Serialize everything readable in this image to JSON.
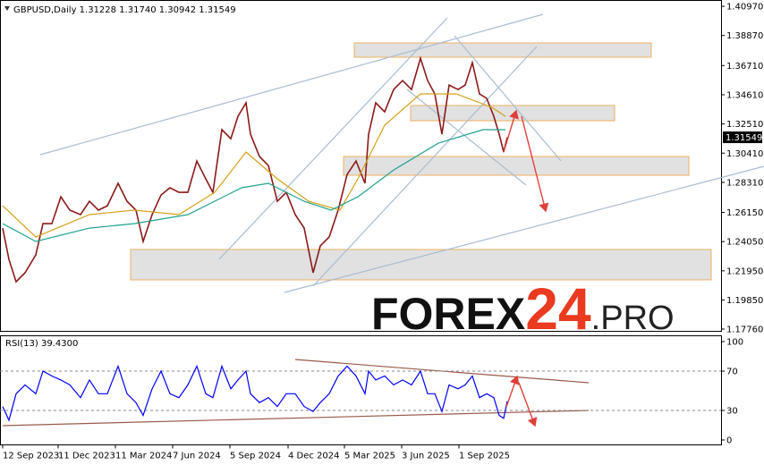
{
  "chart_data": [
    {
      "type": "line",
      "title": "GBPUSD,Daily  1.31228 1.31740 1.30942 1.31549",
      "watermark": {
        "main": "FOREX",
        "number": "24",
        "suffix": ".PRO"
      },
      "last_price": 1.31549,
      "xlim": [
        0,
        806
      ],
      "ylim": [
        1.1763,
        1.4136
      ],
      "yticks": [
        {
          "value": 1.4097,
          "label": "1.40970"
        },
        {
          "value": 1.3887,
          "label": "1.38870"
        },
        {
          "value": 1.3671,
          "label": "1.36710"
        },
        {
          "value": 1.3461,
          "label": "1.34610"
        },
        {
          "value": 1.3251,
          "label": "1.32510"
        },
        {
          "value": 1.3041,
          "label": "1.30410"
        },
        {
          "value": 1.2831,
          "label": "1.28310"
        },
        {
          "value": 1.2615,
          "label": "1.26150"
        },
        {
          "value": 1.2405,
          "label": "1.24050"
        },
        {
          "value": 1.2195,
          "label": "1.21950"
        },
        {
          "value": 1.1985,
          "label": "1.19850"
        },
        {
          "value": 1.1776,
          "label": "1.17760"
        }
      ],
      "x": [
        3,
        10,
        18,
        28,
        40,
        48,
        58,
        68,
        78,
        90,
        100,
        110,
        120,
        132,
        142,
        152,
        160,
        170,
        180,
        190,
        200,
        210,
        220,
        230,
        238,
        248,
        258,
        266,
        275,
        280,
        290,
        300,
        310,
        320,
        330,
        340,
        350,
        358,
        368,
        378,
        388,
        398,
        408,
        412,
        420,
        430,
        440,
        450,
        460,
        470,
        478,
        486,
        494,
        502,
        512,
        520,
        528,
        536,
        544,
        552,
        558,
        563,
        567
      ],
      "series": [
        {
          "color": "#8b1a1a",
          "values": [
            1.2502,
            1.2277,
            1.2116,
            1.2181,
            1.2309,
            1.2534,
            1.2534,
            1.2727,
            1.2631,
            1.2599,
            1.2695,
            1.2631,
            1.2663,
            1.2824,
            1.2695,
            1.2631,
            1.2406,
            1.2599,
            1.274,
            1.2792,
            1.2759,
            1.2759,
            1.2984,
            1.2856,
            1.2759,
            1.321,
            1.3145,
            1.3306,
            1.3403,
            1.3177,
            1.3017,
            1.2952,
            1.2695,
            1.2759,
            1.2599,
            1.2502,
            1.2181,
            1.2374,
            1.2438,
            1.2631,
            1.2888,
            1.2984,
            1.2824,
            1.3177,
            1.3403,
            1.3338,
            1.3499,
            1.3563,
            1.3499,
            1.3724,
            1.3563,
            1.3467,
            1.3177,
            1.3531,
            1.3499,
            1.3531,
            1.3692,
            1.3467,
            1.3435,
            1.3306,
            1.3177,
            1.3049,
            1.31549
          ]
        },
        {
          "color": "#d4a017",
          "x": [
            3,
            40,
            100,
            150,
            200,
            240,
            275,
            310,
            345,
            380,
            400,
            430,
            470,
            510,
            550,
            565
          ],
          "values": [
            1.2663,
            1.2438,
            1.2599,
            1.2631,
            1.2599,
            1.2759,
            1.3049,
            1.2856,
            1.2695,
            1.2631,
            1.2856,
            1.3242,
            1.3467,
            1.3467,
            1.337,
            1.3306
          ]
        },
        {
          "color": "#20a090",
          "x": [
            3,
            40,
            100,
            150,
            210,
            270,
            300,
            340,
            370,
            400,
            440,
            490,
            540,
            565
          ],
          "values": [
            1.2534,
            1.2406,
            1.2502,
            1.2534,
            1.2599,
            1.2792,
            1.2824,
            1.2695,
            1.2631,
            1.2727,
            1.292,
            1.3113,
            1.321,
            1.321
          ]
        }
      ]
    },
    {
      "type": "line",
      "title": "RSI(13) 39.4300",
      "xlim": [
        0,
        806
      ],
      "ylim": [
        -5,
        105
      ],
      "yticks": [
        0,
        30,
        70,
        100
      ],
      "levels": [
        30,
        70
      ],
      "xticks": [
        {
          "value": 3,
          "label": "12 Sep 2023"
        },
        {
          "value": 65,
          "label": "11 Dec 2023"
        },
        {
          "value": 129,
          "label": "11 Mar 2024"
        },
        {
          "value": 193,
          "label": "7 Jun 2024"
        },
        {
          "value": 257,
          "label": "5 Sep 2024"
        },
        {
          "value": 322,
          "label": "4 Dec 2024"
        },
        {
          "value": 385,
          "label": "5 Mar 2025"
        },
        {
          "value": 449,
          "label": "3 Jun 2025"
        },
        {
          "value": 513,
          "label": "1 Sep 2025"
        }
      ],
      "x": [
        3,
        10,
        18,
        28,
        40,
        48,
        58,
        68,
        78,
        90,
        100,
        110,
        120,
        132,
        142,
        152,
        160,
        170,
        180,
        190,
        200,
        210,
        220,
        230,
        238,
        248,
        258,
        266,
        275,
        280,
        290,
        300,
        310,
        320,
        330,
        340,
        350,
        358,
        368,
        378,
        388,
        398,
        408,
        412,
        420,
        430,
        440,
        450,
        460,
        470,
        478,
        486,
        494,
        502,
        512,
        520,
        528,
        536,
        544,
        552,
        558,
        563,
        567
      ],
      "series": [
        {
          "color": "#0000ff",
          "values": [
            34,
            20,
            47,
            56,
            47,
            70,
            65,
            61,
            56,
            43,
            61,
            47,
            47,
            75,
            47,
            38,
            25,
            52,
            70,
            47,
            43,
            56,
            75,
            47,
            43,
            75,
            52,
            61,
            70,
            47,
            38,
            43,
            34,
            47,
            47,
            34,
            29,
            38,
            47,
            65,
            75,
            65,
            47,
            70,
            61,
            65,
            56,
            61,
            56,
            70,
            47,
            47,
            29,
            56,
            52,
            56,
            65,
            43,
            47,
            43,
            25,
            22,
            39.43
          ]
        }
      ]
    }
  ]
}
